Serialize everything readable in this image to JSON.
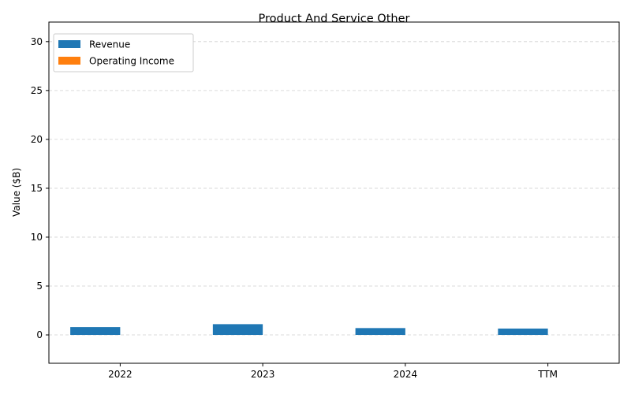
{
  "chart_data": {
    "type": "bar",
    "title": "Product And Service Other",
    "xlabel": "",
    "ylabel": "Value ($B)",
    "categories": [
      "2022",
      "2023",
      "2024",
      "TTM"
    ],
    "series": [
      {
        "name": "Revenue",
        "color": "#1f77b4",
        "values": [
          0.8,
          1.1,
          0.7,
          0.65
        ]
      },
      {
        "name": "Operating Income",
        "color": "#ff7f0e",
        "values": [
          0,
          0,
          0,
          0
        ]
      }
    ],
    "ylim": [
      -2.9,
      32
    ],
    "yticks": [
      0,
      5,
      10,
      15,
      20,
      25,
      30
    ],
    "grid": true,
    "legend": "top-left"
  }
}
